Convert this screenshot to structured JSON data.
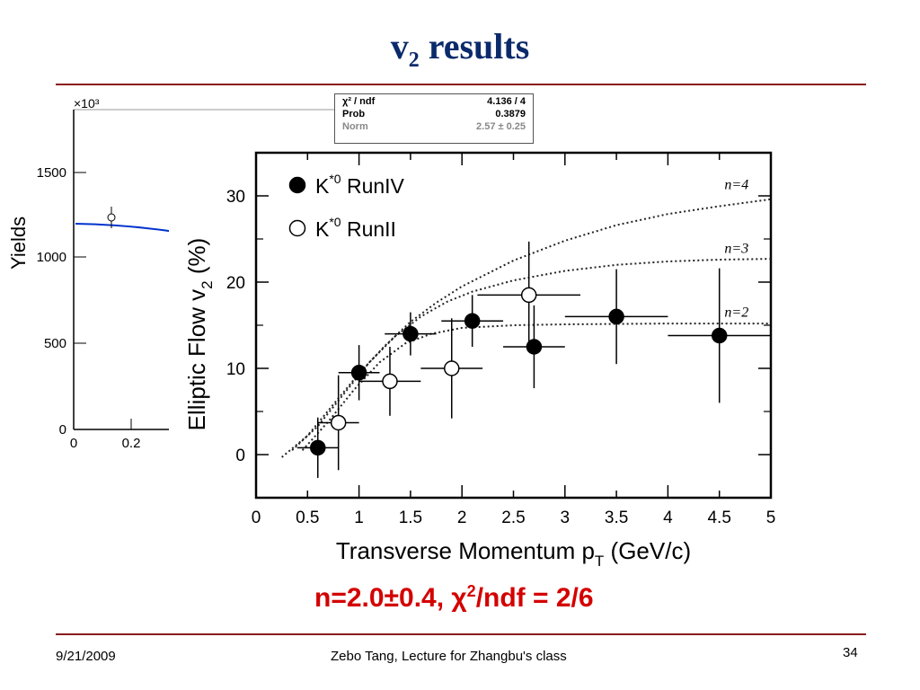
{
  "slide": {
    "title_main": "v",
    "title_sub": "2",
    "title_rest": " results",
    "result_prefix": "n=2.0±0.4, χ",
    "result_sup": "2",
    "result_rest": "/ndf = 2/6",
    "footer_date": "9/21/2009",
    "footer_center": "Zebo Tang, Lecture for Zhangbu's class",
    "page_number": "34",
    "accent_color": "#0b2a6b",
    "rule_color": "#8a1c1c",
    "result_color": "#d40000"
  },
  "background_plot": {
    "ylabel": "Yields",
    "multiplier": "×10³",
    "yticks": [
      "1500",
      "1000",
      "500",
      "0"
    ],
    "xticks": [
      "0",
      "0.2"
    ],
    "fit_color": "#0033cc",
    "fit_box": {
      "rows": [
        {
          "label": "χ² / ndf",
          "value": "4.136 / 4"
        },
        {
          "label": "Prob",
          "value": "0.3879"
        },
        {
          "label": "Norm",
          "value": "2.57 ± 0.25"
        }
      ]
    }
  },
  "chart_data": {
    "type": "scatter",
    "title": "",
    "xlabel": "Transverse Momentum p",
    "xlabel_sub": "T",
    "xlabel_unit": " (GeV/c)",
    "ylabel": "Elliptic Flow v",
    "ylabel_sub": "2",
    "ylabel_unit": " (%)",
    "xlim": [
      0,
      5
    ],
    "ylim": [
      -5,
      35
    ],
    "xticks": [
      0,
      0.5,
      1,
      1.5,
      2,
      2.5,
      3,
      3.5,
      4,
      4.5,
      5
    ],
    "yticks": [
      0,
      10,
      20,
      30
    ],
    "grid": false,
    "legend_position": "top-left",
    "series": [
      {
        "name": "K*0 RunIV",
        "legend_main": "K",
        "legend_sup": "*0",
        "legend_rest": " RunIV",
        "marker": "filled",
        "points": [
          {
            "x": 0.6,
            "y": 0.8,
            "xerr": 0.2,
            "yerr": 3.5
          },
          {
            "x": 1.0,
            "y": 9.5,
            "xerr": 0.2,
            "yerr": 3.2
          },
          {
            "x": 1.5,
            "y": 14.0,
            "xerr": 0.25,
            "yerr": 2.5
          },
          {
            "x": 2.1,
            "y": 15.5,
            "xerr": 0.3,
            "yerr": 3.0
          },
          {
            "x": 2.7,
            "y": 12.5,
            "xerr": 0.3,
            "yerr": 4.8
          },
          {
            "x": 3.5,
            "y": 16.0,
            "xerr": 0.5,
            "yerr": 5.5
          },
          {
            "x": 4.5,
            "y": 13.8,
            "xerr": 0.5,
            "yerr": 7.8
          }
        ]
      },
      {
        "name": "K*0 RunII",
        "legend_main": "K",
        "legend_sup": "*0",
        "legend_rest": " RunII",
        "marker": "open",
        "points": [
          {
            "x": 0.8,
            "y": 3.7,
            "xerr": 0.2,
            "yerr": 5.5
          },
          {
            "x": 1.3,
            "y": 8.5,
            "xerr": 0.3,
            "yerr": 4.0
          },
          {
            "x": 1.9,
            "y": 10.0,
            "xerr": 0.3,
            "yerr": 5.8
          },
          {
            "x": 2.65,
            "y": 18.5,
            "xerr": 0.5,
            "yerr": 6.2
          }
        ]
      }
    ],
    "curves": [
      {
        "label": "n=4",
        "n": 4,
        "style": "dotted",
        "points": [
          [
            0.25,
            -0.3
          ],
          [
            0.5,
            2.2
          ],
          [
            0.75,
            5.8
          ],
          [
            1.0,
            9.4
          ],
          [
            1.25,
            12.6
          ],
          [
            1.5,
            15.4
          ],
          [
            1.75,
            17.6
          ],
          [
            2.0,
            19.5
          ],
          [
            2.5,
            22.5
          ],
          [
            3.0,
            24.8
          ],
          [
            3.5,
            26.6
          ],
          [
            4.0,
            27.9
          ],
          [
            4.5,
            28.8
          ],
          [
            5.0,
            29.6
          ]
        ]
      },
      {
        "label": "n=3",
        "n": 3,
        "style": "dotted",
        "points": [
          [
            0.35,
            0.5
          ],
          [
            0.6,
            3.3
          ],
          [
            0.85,
            7.0
          ],
          [
            1.1,
            10.7
          ],
          [
            1.35,
            13.7
          ],
          [
            1.6,
            16.0
          ],
          [
            1.85,
            17.7
          ],
          [
            2.1,
            18.9
          ],
          [
            2.5,
            20.2
          ],
          [
            3.0,
            21.3
          ],
          [
            3.5,
            22.0
          ],
          [
            4.0,
            22.4
          ],
          [
            4.5,
            22.6
          ],
          [
            5.0,
            22.7
          ]
        ]
      },
      {
        "label": "n=2",
        "n": 2,
        "style": "dotted",
        "points": [
          [
            0.45,
            0.5
          ],
          [
            0.7,
            3.8
          ],
          [
            0.95,
            7.5
          ],
          [
            1.2,
            10.7
          ],
          [
            1.45,
            12.9
          ],
          [
            1.7,
            14.0
          ],
          [
            2.0,
            14.7
          ],
          [
            2.5,
            15.0
          ],
          [
            3.0,
            15.1
          ],
          [
            4.0,
            15.2
          ],
          [
            5.0,
            15.2
          ]
        ]
      }
    ]
  }
}
